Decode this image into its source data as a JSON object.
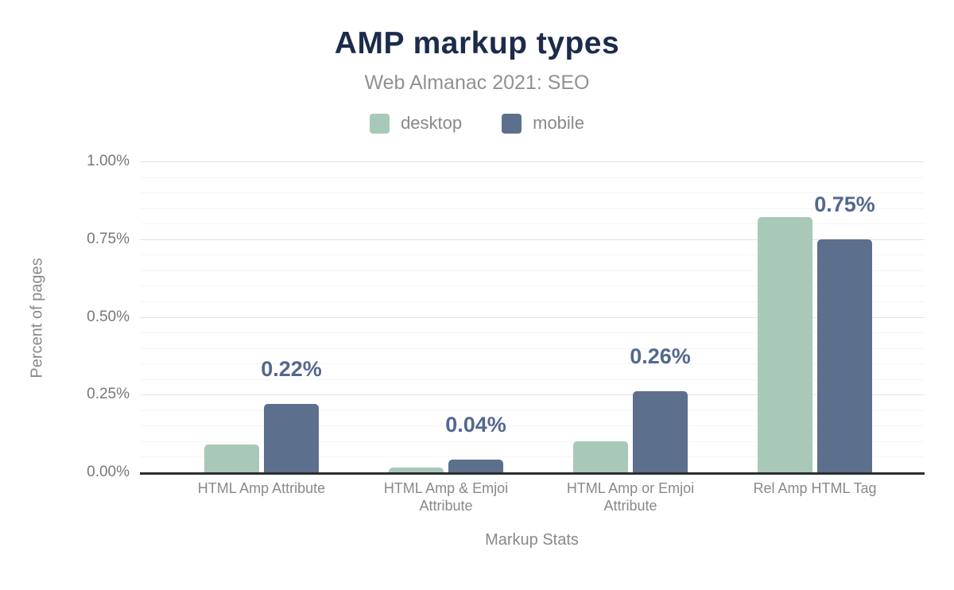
{
  "chart_data": {
    "type": "bar",
    "title": "AMP markup types",
    "subtitle": "Web Almanac 2021: SEO",
    "xlabel": "Markup Stats",
    "ylabel": "Percent of pages",
    "categories": [
      "HTML Amp Attribute",
      "HTML Amp & Emjoi Attribute",
      "HTML Amp or Emjoi Attribute",
      "Rel Amp HTML Tag"
    ],
    "series": [
      {
        "name": "desktop",
        "color": "#a9c9b8",
        "values": [
          0.09,
          0.015,
          0.1,
          0.82
        ]
      },
      {
        "name": "mobile",
        "color": "#5c6f8d",
        "values": [
          0.22,
          0.04,
          0.26,
          0.75
        ]
      }
    ],
    "data_labels": {
      "on_series": "mobile",
      "labels": [
        "0.22%",
        "0.04%",
        "0.26%",
        "0.75%"
      ],
      "color": "#54688e"
    },
    "y_ticks": [
      "0.00%",
      "0.25%",
      "0.50%",
      "0.75%",
      "1.00%"
    ],
    "y_tick_values": [
      0,
      0.25,
      0.5,
      0.75,
      1.0
    ],
    "ylim": [
      0,
      1.0
    ],
    "minor_grid_step": 0.05,
    "grid": true,
    "legend_position": "top"
  },
  "colors": {
    "title": "#1b2b4b",
    "subtitle": "#8f9193",
    "axis_text": "#87898c",
    "y_tick_text": "#75787b",
    "axis_line": "#2c2e30",
    "grid_major": "#e3e3e3",
    "grid_minor": "#f5f5f5",
    "background": "#ffffff"
  }
}
